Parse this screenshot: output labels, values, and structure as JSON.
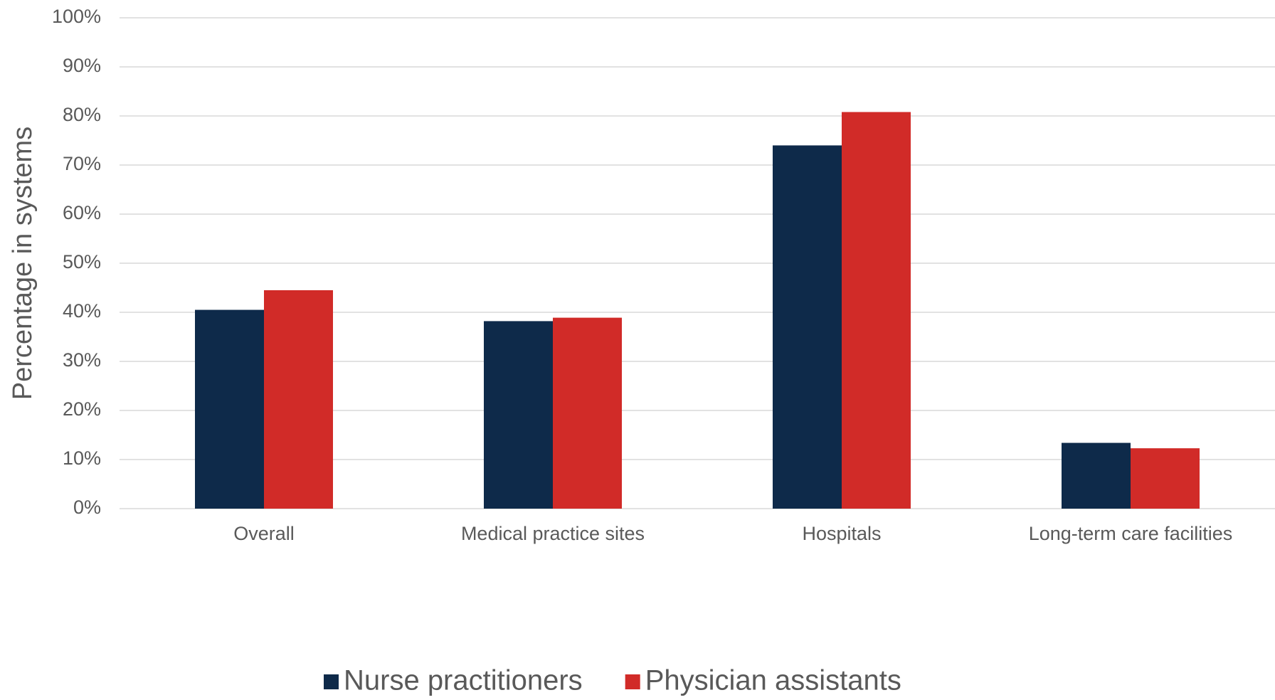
{
  "chart_data": {
    "type": "bar",
    "y_label": "Percentage in systems",
    "categories": [
      "Overall",
      "Medical practice sites",
      "Hospitals",
      "Long-term care facilities"
    ],
    "series": [
      {
        "name": "Nurse practitioners",
        "color": "#0e2a4a",
        "values": [
          40.5,
          38.2,
          74.0,
          13.4
        ]
      },
      {
        "name": "Physician assistants",
        "color": "#d12b28",
        "values": [
          44.5,
          38.9,
          80.8,
          12.3
        ]
      }
    ],
    "ylim": [
      0,
      100
    ],
    "yticks": [
      {
        "value": 0,
        "label": "0%"
      },
      {
        "value": 10,
        "label": "10%"
      },
      {
        "value": 20,
        "label": "20%"
      },
      {
        "value": 30,
        "label": "30%"
      },
      {
        "value": 40,
        "label": "40%"
      },
      {
        "value": 50,
        "label": "50%"
      },
      {
        "value": 60,
        "label": "60%"
      },
      {
        "value": 70,
        "label": "70%"
      },
      {
        "value": 80,
        "label": "80%"
      },
      {
        "value": 90,
        "label": "90%"
      },
      {
        "value": 100,
        "label": "100%"
      }
    ],
    "grid": true,
    "legend": "bottom"
  }
}
